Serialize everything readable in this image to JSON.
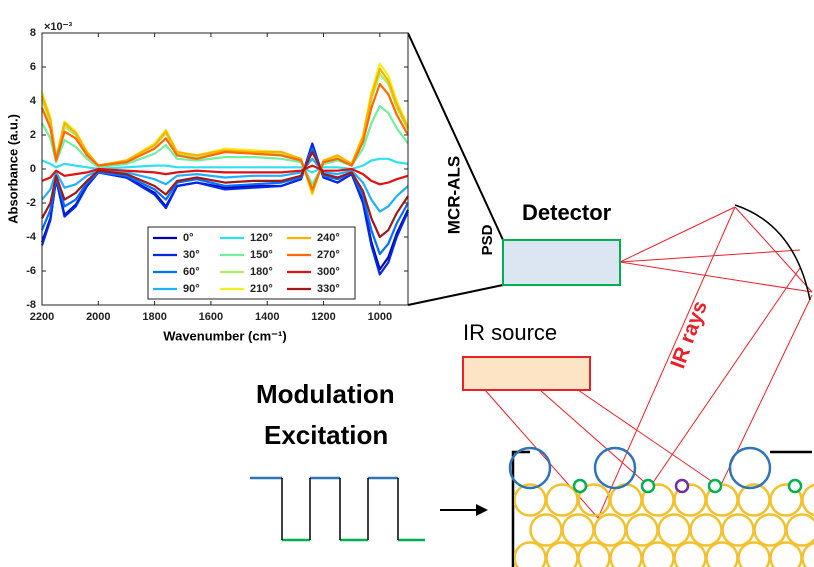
{
  "chart_data": {
    "type": "line",
    "exponent_label": "×10⁻³",
    "xlabel": "Wavenumber (cm⁻¹)",
    "ylabel": "Absorbance (a.u.)",
    "xlim": [
      2200,
      900
    ],
    "ylim": [
      -8,
      8
    ],
    "xticks": [
      2200,
      2000,
      1800,
      1600,
      1400,
      1200,
      1000
    ],
    "yticks": [
      -8,
      -6,
      -4,
      -2,
      0,
      2,
      4,
      6,
      8
    ],
    "x": [
      2200,
      2170,
      2150,
      2120,
      2080,
      2040,
      2000,
      1900,
      1800,
      1760,
      1720,
      1650,
      1550,
      1450,
      1350,
      1280,
      1240,
      1200,
      1150,
      1100,
      1060,
      1030,
      1000,
      970,
      940,
      900
    ],
    "series": [
      {
        "name": "0°",
        "color": "#0000b0",
        "values": [
          -4.3,
          -2.9,
          -0.6,
          -2.7,
          -2.1,
          -1.0,
          -0.2,
          -0.5,
          -1.4,
          -2.2,
          -1.0,
          -0.8,
          -1.1,
          -1.0,
          -1.0,
          -0.6,
          1.4,
          -0.5,
          -0.8,
          -0.3,
          -1.9,
          -4.3,
          -5.9,
          -5.2,
          -3.8,
          -2.4
        ]
      },
      {
        "name": "30°",
        "color": "#0028e8",
        "values": [
          -4.5,
          -3.0,
          -0.6,
          -2.8,
          -2.2,
          -1.0,
          -0.2,
          -0.5,
          -1.5,
          -2.3,
          -1.0,
          -0.8,
          -1.2,
          -1.1,
          -1.0,
          -0.6,
          1.5,
          -0.5,
          -0.8,
          -0.3,
          -2.0,
          -4.5,
          -6.2,
          -5.5,
          -4.0,
          -2.5
        ]
      },
      {
        "name": "60°",
        "color": "#0070ff",
        "values": [
          -3.6,
          -2.4,
          -0.5,
          -2.2,
          -1.8,
          -0.8,
          -0.2,
          -0.4,
          -1.2,
          -1.8,
          -0.8,
          -0.6,
          -1.0,
          -0.9,
          -0.8,
          -0.5,
          1.2,
          -0.4,
          -0.6,
          -0.2,
          -1.6,
          -3.6,
          -5.0,
          -4.4,
          -3.2,
          -2.0
        ]
      },
      {
        "name": "90°",
        "color": "#20b0ff",
        "values": [
          -1.8,
          -1.2,
          -0.2,
          -1.1,
          -0.9,
          -0.4,
          -0.1,
          -0.2,
          -0.6,
          -0.9,
          -0.4,
          -0.3,
          -0.5,
          -0.4,
          -0.4,
          -0.2,
          0.6,
          -0.2,
          -0.3,
          -0.1,
          -0.8,
          -1.8,
          -2.5,
          -2.2,
          -1.6,
          -1.0
        ]
      },
      {
        "name": "120°",
        "color": "#30e0f0",
        "values": [
          0.5,
          0.3,
          0.1,
          0.3,
          0.2,
          0.1,
          0.0,
          0.1,
          0.2,
          0.2,
          0.1,
          0.1,
          0.1,
          0.1,
          0.1,
          0.1,
          -0.2,
          0.1,
          0.1,
          0.0,
          0.2,
          0.5,
          0.6,
          0.6,
          0.4,
          0.3
        ]
      },
      {
        "name": "150°",
        "color": "#70f0a0",
        "values": [
          2.7,
          1.8,
          0.4,
          1.7,
          1.3,
          0.6,
          0.1,
          0.3,
          0.9,
          1.4,
          0.6,
          0.5,
          0.7,
          0.7,
          0.6,
          0.4,
          -0.9,
          0.3,
          0.5,
          0.2,
          1.2,
          2.7,
          3.7,
          3.3,
          2.4,
          1.5
        ]
      },
      {
        "name": "180°",
        "color": "#a8f060",
        "values": [
          4.1,
          2.7,
          0.5,
          2.5,
          2.0,
          0.9,
          0.2,
          0.5,
          1.4,
          2.1,
          0.9,
          0.7,
          1.1,
          1.0,
          0.9,
          0.5,
          -1.4,
          0.5,
          0.7,
          0.3,
          1.8,
          4.1,
          5.6,
          5.0,
          3.6,
          2.3
        ]
      },
      {
        "name": "210°",
        "color": "#f0f020",
        "values": [
          4.5,
          3.0,
          0.6,
          2.8,
          2.2,
          1.0,
          0.2,
          0.5,
          1.5,
          2.3,
          1.0,
          0.8,
          1.2,
          1.1,
          1.0,
          0.6,
          -1.5,
          0.5,
          0.8,
          0.3,
          2.0,
          4.5,
          6.2,
          5.5,
          4.0,
          2.5
        ]
      },
      {
        "name": "240°",
        "color": "#ffb000",
        "values": [
          4.3,
          2.9,
          0.6,
          2.7,
          2.1,
          1.0,
          0.2,
          0.5,
          1.4,
          2.2,
          1.0,
          0.8,
          1.1,
          1.0,
          1.0,
          0.6,
          -1.4,
          0.5,
          0.8,
          0.3,
          1.9,
          4.3,
          5.9,
          5.2,
          3.8,
          2.4
        ]
      },
      {
        "name": "270°",
        "color": "#ff6a00",
        "values": [
          3.6,
          2.4,
          0.5,
          2.2,
          1.8,
          0.8,
          0.2,
          0.4,
          1.2,
          1.8,
          0.8,
          0.6,
          1.0,
          0.9,
          0.8,
          0.5,
          -1.2,
          0.4,
          0.6,
          0.2,
          1.6,
          3.6,
          5.0,
          4.4,
          3.2,
          2.0
        ]
      },
      {
        "name": "300°",
        "color": "#e01010",
        "values": [
          -0.7,
          -0.5,
          -0.1,
          -0.4,
          -0.3,
          -0.2,
          0.0,
          -0.1,
          -0.2,
          -0.3,
          -0.2,
          -0.1,
          -0.2,
          -0.2,
          -0.2,
          -0.1,
          0.2,
          -0.1,
          -0.1,
          0.0,
          -0.3,
          -0.7,
          -0.9,
          -0.8,
          -0.6,
          -0.4
        ]
      },
      {
        "name": "330°",
        "color": "#a01818",
        "values": [
          -2.9,
          -2.0,
          -0.4,
          -1.8,
          -1.4,
          -0.7,
          -0.1,
          -0.3,
          -1.0,
          -1.5,
          -0.7,
          -0.5,
          -0.8,
          -0.7,
          -0.7,
          -0.4,
          1.0,
          -0.3,
          -0.5,
          -0.2,
          -1.3,
          -2.9,
          -4.0,
          -3.6,
          -2.6,
          -1.6
        ]
      }
    ]
  },
  "diagram": {
    "method": "MCR-ALS",
    "psd": "PSD",
    "detector": "Detector",
    "ir_rays": "IR rays",
    "ir_source": "IR source",
    "modulation": "Modulation",
    "excitation": "Excitation"
  }
}
